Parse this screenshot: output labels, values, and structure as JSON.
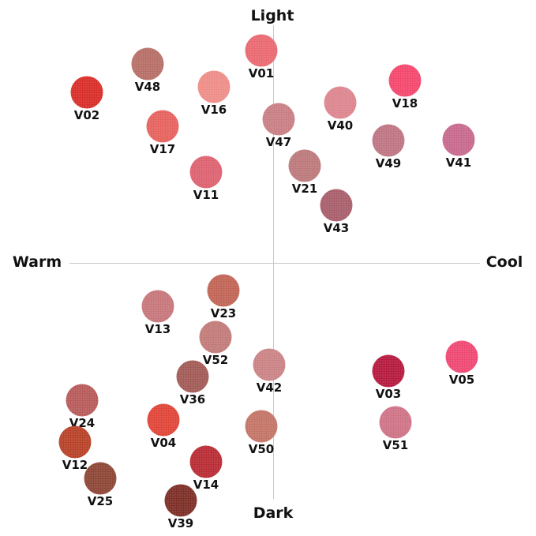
{
  "axes": {
    "top": "Light",
    "bottom": "Dark",
    "left": "Warm",
    "right": "Cool"
  },
  "shades": [
    {
      "name": "V01",
      "color": "#ea6a72"
    },
    {
      "name": "V48",
      "color": "#b77068"
    },
    {
      "name": "V02",
      "color": "#d9302a"
    },
    {
      "name": "V16",
      "color": "#ee8e8a"
    },
    {
      "name": "V18",
      "color": "#f4496e"
    },
    {
      "name": "V40",
      "color": "#dd8690"
    },
    {
      "name": "V47",
      "color": "#c98085"
    },
    {
      "name": "V17",
      "color": "#e66460"
    },
    {
      "name": "V49",
      "color": "#bf7684"
    },
    {
      "name": "V41",
      "color": "#c86a8e"
    },
    {
      "name": "V11",
      "color": "#dd6472"
    },
    {
      "name": "V21",
      "color": "#bd7a7c"
    },
    {
      "name": "V43",
      "color": "#a9606c"
    },
    {
      "name": "V23",
      "color": "#c16658"
    },
    {
      "name": "V13",
      "color": "#c7787c"
    },
    {
      "name": "V52",
      "color": "#c27c7a"
    },
    {
      "name": "V42",
      "color": "#cb8486"
    },
    {
      "name": "V36",
      "color": "#a35c58"
    },
    {
      "name": "V03",
      "color": "#b61c40"
    },
    {
      "name": "V05",
      "color": "#ee4a74"
    },
    {
      "name": "V24",
      "color": "#b85c5c"
    },
    {
      "name": "V04",
      "color": "#e0473a"
    },
    {
      "name": "V50",
      "color": "#c47668"
    },
    {
      "name": "V51",
      "color": "#cf7488"
    },
    {
      "name": "V12",
      "color": "#b8442a"
    },
    {
      "name": "V14",
      "color": "#b92e36"
    },
    {
      "name": "V25",
      "color": "#8e4838"
    },
    {
      "name": "V39",
      "color": "#7e3028"
    }
  ]
}
